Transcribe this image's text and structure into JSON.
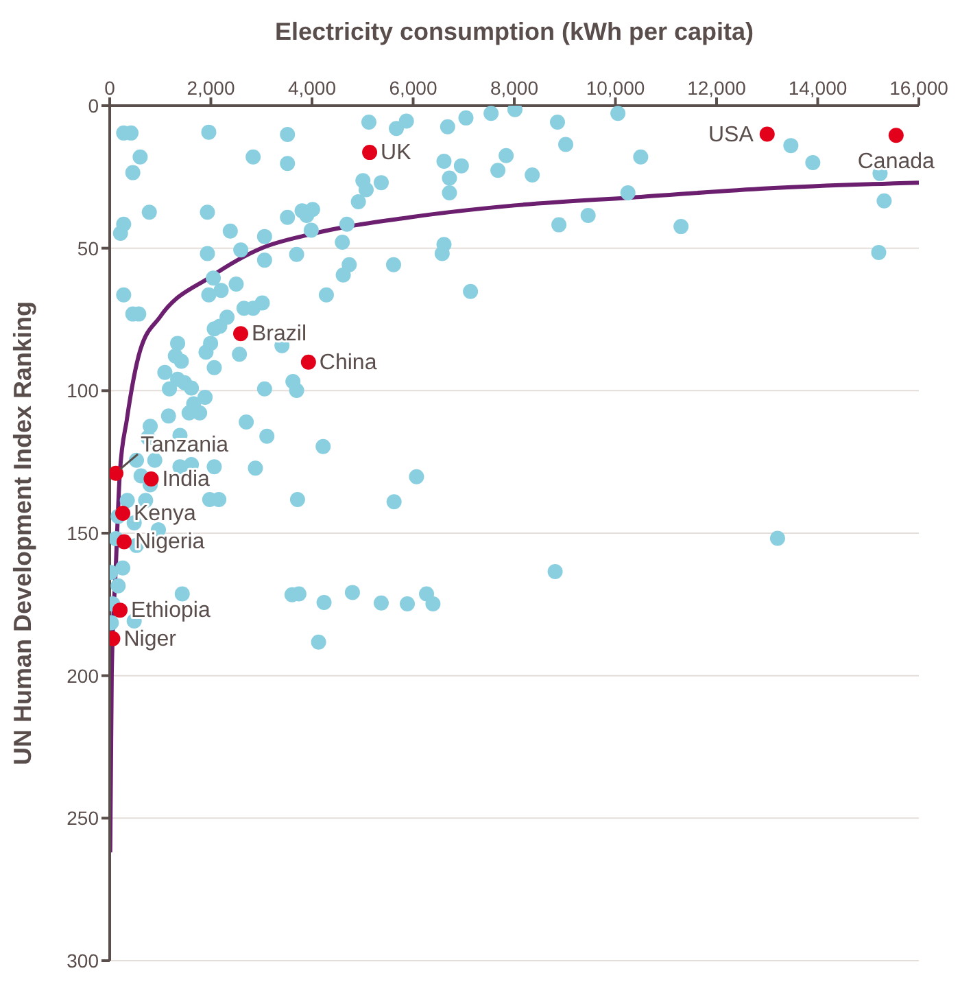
{
  "chart_data": {
    "type": "scatter",
    "xlabel": "Electricity consumption (kWh per capita)",
    "ylabel": "UN Human Development Index Ranking",
    "xlim": [
      0,
      16000
    ],
    "xticks": [
      0,
      {
        "value": 2000,
        "label": "2,000"
      },
      {
        "value": 4000,
        "label": "4,000"
      },
      {
        "value": 6000,
        "label": "6,000"
      },
      {
        "value": 8000,
        "label": "8,000"
      },
      {
        "value": 10000,
        "label": "10,000"
      },
      {
        "value": 12000,
        "label": "12,000"
      },
      {
        "value": 14000,
        "label": "14,000"
      },
      {
        "value": 16000,
        "label": "16,000"
      }
    ],
    "ylim": [
      300,
      0
    ],
    "yticks": [
      0,
      50,
      100,
      150,
      200,
      250,
      300
    ],
    "grid": "y",
    "marker": "circle",
    "series": [
      {
        "color": "#89cfe0",
        "x": [
          276,
          421,
          602,
          457,
          783,
          276,
          213,
          276,
          457,
          574,
          1959,
          2836,
          3515,
          3515,
          1932,
          2384,
          1932,
          2592,
          3062,
          3062,
          2049,
          2203,
          1959,
          2501,
          2655,
          2836,
          3017,
          2320,
          2176,
          2067,
          1995,
          1904,
          2565,
          2067,
          1343,
          1298,
          1416,
          1090,
          1181,
          1343,
          1479,
          1615,
          1886,
          1660,
          1570,
          1778,
          3515,
          3696,
          3804,
          4012,
          3895,
          3985,
          3406,
          3623,
          3696,
          3062,
          4284,
          4600,
          4691,
          4618,
          4736,
          4917,
          5007,
          5071,
          5369,
          5125,
          5668,
          5867,
          5613,
          1163,
          801,
          1389,
          755,
          2700,
          3108,
          4220,
          529,
          891,
          620,
          801,
          1389,
          1615,
          2067,
          2881,
          348,
          710,
          1977,
          2158,
          3714,
          5623,
          167,
          484,
          963,
          122,
          529,
          20,
          258,
          167,
          59,
          32,
          484,
          1434,
          3605,
          3741,
          4238,
          4799,
          5369,
          5885,
          4130,
          6067,
          6265,
          6392,
          8808,
          6682,
          7044,
          7541,
          8013,
          8854,
          9017,
          10049,
          10500,
          6610,
          6954,
          6718,
          6718,
          7839,
          7676,
          8355,
          8882,
          9460,
          10247,
          6610,
          6574,
          7134,
          11297,
          13469,
          13903,
          15233,
          15314,
          15206,
          13206
        ],
        "values": [
          9.6,
          9.6,
          18,
          23.5,
          37.4,
          41.6,
          44.8,
          66.4,
          73.1,
          73.1,
          9.3,
          18,
          10.1,
          20.3,
          37.4,
          44,
          51.9,
          50.6,
          45.9,
          54.2,
          60.5,
          64.8,
          66.4,
          62.6,
          71.1,
          71.1,
          69.2,
          74.2,
          77.4,
          78.3,
          83.4,
          86.5,
          87.2,
          91.9,
          83.4,
          87.8,
          89.7,
          93.6,
          99.4,
          96,
          97.2,
          99.1,
          102.3,
          104.6,
          107.8,
          107.8,
          39.2,
          52.2,
          36.9,
          36.4,
          38.5,
          43.7,
          84.2,
          96.8,
          99.9,
          99.4,
          66.4,
          47.9,
          41.6,
          59.4,
          55.8,
          33.7,
          26.3,
          29.5,
          27,
          5.8,
          8,
          5.4,
          55.8,
          108.9,
          112.5,
          115.7,
          116.5,
          111,
          116,
          119.6,
          124.4,
          124.4,
          129.9,
          133,
          126.7,
          125.9,
          126.7,
          127.2,
          138.5,
          138.5,
          138.2,
          138.2,
          138.2,
          139,
          144.1,
          146.4,
          148.8,
          151.9,
          154.3,
          163.8,
          162.2,
          168.5,
          174.8,
          181.4,
          180.8,
          171.3,
          171.6,
          171.3,
          174.3,
          170.8,
          174.5,
          174.8,
          188.2,
          130.2,
          171.3,
          174.8,
          163.5,
          7.4,
          4.3,
          2.7,
          1.4,
          5.8,
          13.6,
          2.7,
          18,
          19.5,
          21.1,
          25.4,
          30.6,
          17.5,
          22.7,
          24.3,
          41.8,
          38.5,
          30.6,
          48.7,
          51.9,
          65.2,
          42.4,
          14,
          20,
          23.8,
          33.4,
          51.5,
          151.8
        ]
      },
      {
        "color": "#e3001b",
        "x": [
          5140,
          2590,
          3930,
          13000,
          15550,
          122,
          820,
          258,
          285,
          204,
          60
        ],
        "values": [
          16.4,
          80,
          90,
          10,
          10.4,
          129,
          131,
          143,
          153,
          177,
          187
        ]
      },
      {
        "type": "line",
        "color": "#6b1f6e",
        "marker": "none",
        "x": [
          10,
          40,
          120,
          200,
          340,
          600,
          1000,
          2000,
          3000,
          4000,
          6000,
          8000,
          10500,
          13000,
          16000
        ],
        "values": [
          262,
          199,
          162,
          129,
          110,
          86,
          74,
          60,
          50,
          45,
          39,
          35,
          32,
          29,
          27
        ]
      }
    ],
    "annotations": [
      {
        "text": "UK",
        "x": 5140,
        "y": 16.4
      },
      {
        "text": "Brazil",
        "x": 2590,
        "y": 80
      },
      {
        "text": "China",
        "x": 3930,
        "y": 90
      },
      {
        "text": "USA",
        "x": 13000,
        "y": 10
      },
      {
        "text": "Canada",
        "x": 15550,
        "y": 10.4
      },
      {
        "text": "Tanzania",
        "x": 122,
        "y": 129
      },
      {
        "text": "India",
        "x": 820,
        "y": 131
      },
      {
        "text": "Kenya",
        "x": 258,
        "y": 143
      },
      {
        "text": "Nigeria",
        "x": 285,
        "y": 153
      },
      {
        "text": "Ethiopia",
        "x": 204,
        "y": 177
      },
      {
        "text": "Niger",
        "x": 60,
        "y": 187
      }
    ]
  }
}
